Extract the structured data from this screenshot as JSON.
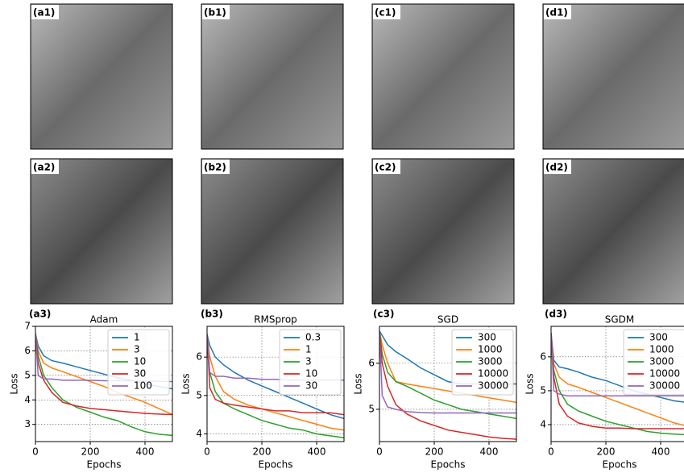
{
  "image_panels": [
    "(a1)",
    "(b1)",
    "(c1)",
    "(d1)",
    "(a2)",
    "(b2)",
    "(c2)",
    "(d2)"
  ],
  "chart_data": [
    {
      "type": "line",
      "panel": "(a3)",
      "title": "Adam",
      "xlabel": "Epochs",
      "ylabel": "Loss",
      "x": [
        0,
        10,
        30,
        60,
        100,
        150,
        200,
        250,
        300,
        350,
        400,
        450,
        500
      ],
      "xlim": [
        0,
        500
      ],
      "xticks": [
        0,
        200,
        400
      ],
      "ylim": [
        2.3,
        7
      ],
      "yticks": [
        3,
        4,
        5,
        6,
        7
      ],
      "grid": true,
      "legend": "upper right",
      "series": [
        {
          "name": "1",
          "color": "#1f77b4",
          "values": [
            6.7,
            6.2,
            5.8,
            5.6,
            5.5,
            5.35,
            5.2,
            5.05,
            4.9,
            4.8,
            4.65,
            4.55,
            4.45
          ]
        },
        {
          "name": "3",
          "color": "#ff7f0e",
          "values": [
            6.7,
            6.0,
            5.5,
            5.3,
            5.15,
            4.95,
            4.75,
            4.55,
            4.3,
            4.1,
            3.9,
            3.65,
            3.4
          ]
        },
        {
          "name": "10",
          "color": "#2ca02c",
          "values": [
            6.7,
            5.8,
            5.0,
            4.5,
            4.0,
            3.7,
            3.5,
            3.3,
            3.15,
            2.9,
            2.7,
            2.6,
            2.55
          ]
        },
        {
          "name": "30",
          "color": "#d62728",
          "values": [
            6.7,
            5.5,
            4.8,
            4.3,
            3.9,
            3.75,
            3.65,
            3.6,
            3.55,
            3.5,
            3.45,
            3.42,
            3.4
          ]
        },
        {
          "name": "100",
          "color": "#9467bd",
          "values": [
            6.7,
            5.0,
            4.85,
            4.85,
            4.8,
            4.8,
            4.8,
            4.78,
            4.78,
            4.77,
            4.77,
            4.76,
            4.75
          ]
        }
      ]
    },
    {
      "type": "line",
      "panel": "(b3)",
      "title": "RMSprop",
      "xlabel": "Epochs",
      "ylabel": "Loss",
      "x": [
        0,
        10,
        30,
        60,
        100,
        150,
        200,
        250,
        300,
        350,
        400,
        450,
        500
      ],
      "xlim": [
        0,
        500
      ],
      "xticks": [
        0,
        200,
        400
      ],
      "ylim": [
        3.8,
        6.8
      ],
      "yticks": [
        4,
        5,
        6
      ],
      "grid": true,
      "legend": "upper right",
      "series": [
        {
          "name": "0.3",
          "color": "#1f77b4",
          "values": [
            6.6,
            6.3,
            6.0,
            5.8,
            5.6,
            5.4,
            5.25,
            5.1,
            4.95,
            4.8,
            4.65,
            4.5,
            4.4
          ]
        },
        {
          "name": "1",
          "color": "#ff7f0e",
          "values": [
            6.6,
            6.0,
            5.5,
            5.1,
            4.9,
            4.75,
            4.65,
            4.55,
            4.45,
            4.35,
            4.25,
            4.15,
            4.1
          ]
        },
        {
          "name": "3",
          "color": "#2ca02c",
          "values": [
            6.6,
            5.6,
            5.1,
            4.8,
            4.65,
            4.5,
            4.35,
            4.25,
            4.15,
            4.1,
            4.0,
            3.95,
            3.9
          ]
        },
        {
          "name": "10",
          "color": "#d62728",
          "values": [
            6.6,
            5.2,
            4.9,
            4.8,
            4.75,
            4.7,
            4.65,
            4.6,
            4.6,
            4.55,
            4.55,
            4.55,
            4.5
          ]
        },
        {
          "name": "30",
          "color": "#9467bd",
          "values": [
            6.6,
            5.6,
            5.5,
            5.5,
            5.45,
            5.45,
            5.42,
            5.42,
            5.4,
            5.4,
            5.4,
            5.4,
            5.4
          ]
        }
      ]
    },
    {
      "type": "line",
      "panel": "(c3)",
      "title": "SGD",
      "xlabel": "Epochs",
      "ylabel": "Loss",
      "x": [
        0,
        10,
        30,
        60,
        100,
        150,
        200,
        250,
        300,
        350,
        400,
        450,
        500
      ],
      "xlim": [
        0,
        500
      ],
      "xticks": [
        0,
        200,
        400
      ],
      "ylim": [
        4.3,
        6.8
      ],
      "yticks": [
        5,
        6
      ],
      "grid": true,
      "legend": "upper right",
      "series": [
        {
          "name": "300",
          "color": "#1f77b4",
          "values": [
            6.7,
            6.6,
            6.4,
            6.25,
            6.1,
            5.9,
            5.75,
            5.6,
            5.55,
            5.55,
            5.55,
            5.55,
            5.55
          ]
        },
        {
          "name": "1000",
          "color": "#ff7f0e",
          "values": [
            6.7,
            6.4,
            6.0,
            5.6,
            5.55,
            5.5,
            5.45,
            5.4,
            5.35,
            5.3,
            5.25,
            5.2,
            5.15
          ]
        },
        {
          "name": "3000",
          "color": "#2ca02c",
          "values": [
            6.7,
            6.2,
            5.8,
            5.6,
            5.5,
            5.35,
            5.2,
            5.1,
            5.0,
            4.95,
            4.9,
            4.85,
            4.8
          ]
        },
        {
          "name": "10000",
          "color": "#d62728",
          "values": [
            6.7,
            6.0,
            5.5,
            5.1,
            4.9,
            4.75,
            4.65,
            4.55,
            4.5,
            4.45,
            4.4,
            4.37,
            4.35
          ]
        },
        {
          "name": "30000",
          "color": "#9467bd",
          "values": [
            6.7,
            5.3,
            5.05,
            5.0,
            4.95,
            4.93,
            4.92,
            4.92,
            4.92,
            4.92,
            4.92,
            4.92,
            4.92
          ]
        }
      ]
    },
    {
      "type": "line",
      "panel": "(d3)",
      "title": "SGDM",
      "xlabel": "Epochs",
      "ylabel": "Loss",
      "x": [
        0,
        10,
        30,
        60,
        100,
        150,
        200,
        250,
        300,
        350,
        400,
        450,
        500
      ],
      "xlim": [
        0,
        500
      ],
      "xticks": [
        0,
        200,
        400
      ],
      "ylim": [
        3.5,
        6.9
      ],
      "yticks": [
        4,
        5,
        6
      ],
      "grid": true,
      "legend": "upper right",
      "series": [
        {
          "name": "300",
          "color": "#1f77b4",
          "values": [
            6.7,
            5.9,
            5.7,
            5.65,
            5.55,
            5.4,
            5.3,
            5.15,
            5.0,
            4.9,
            4.8,
            4.7,
            4.65
          ]
        },
        {
          "name": "1000",
          "color": "#ff7f0e",
          "values": [
            6.7,
            5.8,
            5.4,
            5.2,
            5.1,
            4.95,
            4.8,
            4.65,
            4.5,
            4.35,
            4.2,
            4.05,
            3.95
          ]
        },
        {
          "name": "3000",
          "color": "#2ca02c",
          "values": [
            6.7,
            5.6,
            5.0,
            4.6,
            4.4,
            4.25,
            4.1,
            4.0,
            3.9,
            3.8,
            3.75,
            3.72,
            3.7
          ]
        },
        {
          "name": "10000",
          "color": "#d62728",
          "values": [
            6.7,
            5.4,
            4.6,
            4.25,
            4.05,
            3.95,
            3.9,
            3.9,
            3.88,
            3.88,
            3.88,
            3.88,
            3.88
          ]
        },
        {
          "name": "30000",
          "color": "#9467bd",
          "values": [
            6.7,
            5.0,
            4.9,
            4.85,
            4.85,
            4.85,
            4.85,
            4.85,
            4.85,
            4.85,
            4.85,
            4.85,
            4.85
          ]
        }
      ]
    }
  ]
}
